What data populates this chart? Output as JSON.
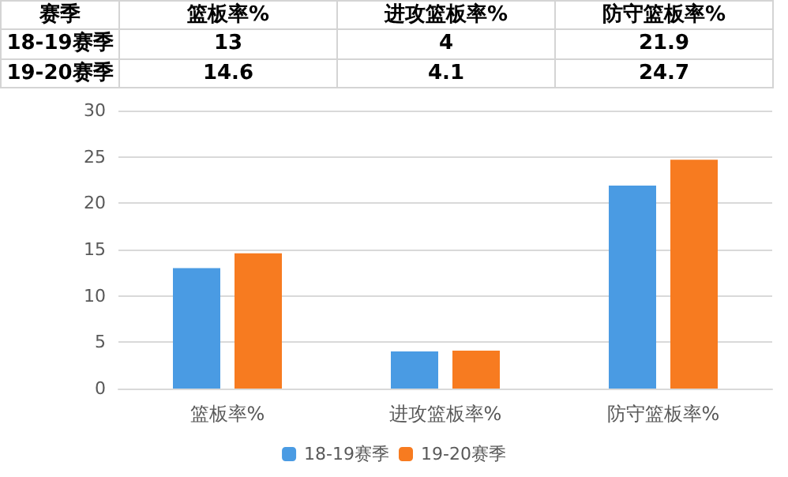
{
  "chart_data": {
    "type": "bar",
    "legend_title": "赛季",
    "categories": [
      "篮板率%",
      "进攻篮板率%",
      "防守篮板率%"
    ],
    "series": [
      {
        "name": "18-19赛季",
        "color": "#4a9be3",
        "values": [
          13,
          4,
          21.9
        ]
      },
      {
        "name": "19-20赛季",
        "color": "#f77b20",
        "values": [
          14.6,
          4.1,
          24.7
        ]
      }
    ],
    "ylim": [
      0,
      30
    ],
    "yticks": [
      0,
      5,
      10,
      15,
      20,
      25,
      30
    ],
    "grid": "y",
    "legend": "bottom",
    "data_labels": true
  }
}
